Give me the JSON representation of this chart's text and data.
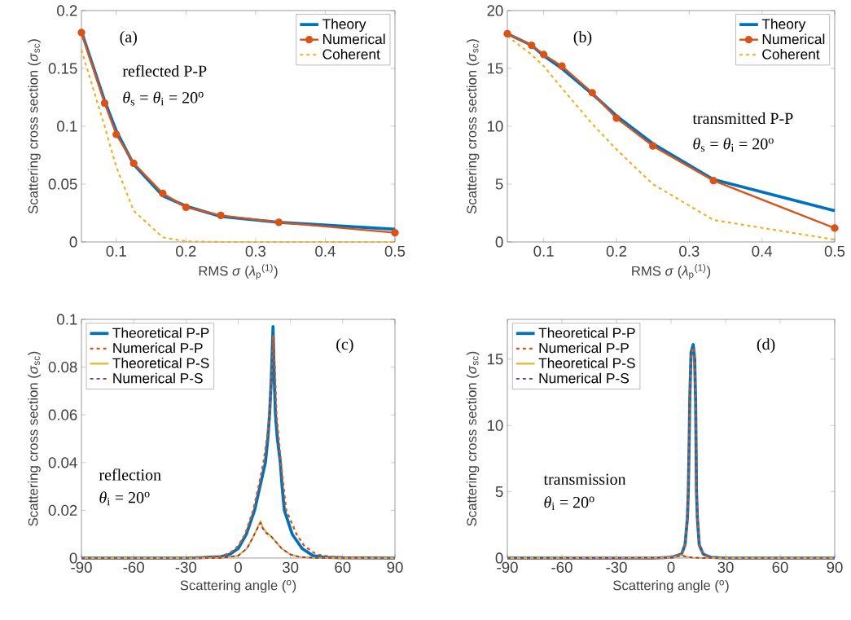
{
  "chart_data": [
    {
      "type": "line",
      "xlabel": "RMS *σ* (*λ*$_{p}$$^{(1)}$)",
      "ylabel": "Scattering cross section (*σ*$_{sc}$)",
      "x": [
        0.05,
        0.0833,
        0.1,
        0.125,
        0.1667,
        0.2,
        0.25,
        0.3333,
        0.5
      ],
      "xlim": [
        0.05,
        0.5
      ],
      "xticks": [
        0.1,
        0.2,
        0.3,
        0.4,
        0.5
      ],
      "ylim": [
        0,
        0.2
      ],
      "yticks": [
        0,
        0.05,
        0.1,
        0.15,
        0.2
      ],
      "legend": "top right",
      "annotations": [
        "(a)",
        "reflected P-P",
        "*θ*$_{s}$ = *θ*$_{i}$ = 20$^{o}$"
      ],
      "series": [
        {
          "name": "Theory",
          "color": "#0072bd",
          "values": [
            0.182,
            0.122,
            0.096,
            0.067,
            0.04,
            0.031,
            0.022,
            0.017,
            0.011
          ]
        },
        {
          "name": "Numerical",
          "color": "#d95319",
          "marker": "circle",
          "values": [
            0.181,
            0.12,
            0.093,
            0.068,
            0.042,
            0.03,
            0.023,
            0.017,
            0.008
          ]
        },
        {
          "name": "Coherent",
          "color": "#edb120",
          "line_style": "dashed",
          "values": [
            0.166,
            0.1,
            0.065,
            0.027,
            0.004,
            0.0005,
            0,
            0,
            0
          ]
        }
      ]
    },
    {
      "type": "line",
      "xlabel": "RMS *σ* (*λ*$_{p}$$^{(1)}$)",
      "ylabel": "Scattering cross section (*σ*$_{sc}$)",
      "x": [
        0.05,
        0.0833,
        0.1,
        0.125,
        0.1667,
        0.2,
        0.25,
        0.3333,
        0.5
      ],
      "xlim": [
        0.05,
        0.5
      ],
      "xticks": [
        0.1,
        0.2,
        0.3,
        0.4,
        0.5
      ],
      "ylim": [
        0,
        20
      ],
      "yticks": [
        0,
        5,
        10,
        15,
        20
      ],
      "legend": "top right",
      "annotations": [
        "(b)",
        "transmitted P-P",
        "*θ*$_{s}$ = *θ*$_{i}$ = 20$^{o}$"
      ],
      "series": [
        {
          "name": "Theory",
          "color": "#0072bd",
          "values": [
            18.0,
            17.0,
            16.1,
            15.0,
            12.8,
            10.9,
            8.5,
            5.4,
            2.7
          ]
        },
        {
          "name": "Numerical",
          "color": "#d95319",
          "marker": "circle",
          "values": [
            18.0,
            17.0,
            16.2,
            15.2,
            12.9,
            10.7,
            8.3,
            5.3,
            1.2
          ]
        },
        {
          "name": "Coherent",
          "color": "#edb120",
          "line_style": "dashed",
          "values": [
            17.8,
            16.2,
            15.2,
            13.3,
            10.2,
            8.0,
            5.0,
            1.9,
            0.2
          ]
        }
      ]
    },
    {
      "type": "line",
      "xlabel": "Scattering angle ($^{o}$)",
      "ylabel": "Scattering cross section (*σ*$_{sc}$)",
      "xlim": [
        -90,
        90
      ],
      "xticks": [
        -90,
        -60,
        -30,
        0,
        30,
        60,
        90
      ],
      "ylim": [
        0,
        0.1
      ],
      "yticks": [
        0,
        0.02,
        0.04,
        0.06,
        0.08,
        0.1
      ],
      "legend": "top left",
      "annotations": [
        "(c)",
        "reflection",
        "*θ*$_{i}$ = 20$^{o}$"
      ],
      "series": [
        {
          "name": "Theoretical P-P",
          "color": "#0072bd",
          "x": [
            -90,
            -60,
            -30,
            -20,
            -10,
            -5,
            0,
            4.7,
            9.4,
            12.5,
            15.6,
            17,
            18,
            19,
            20,
            20.7,
            21.4,
            22.5,
            24.2,
            25.2,
            26.5,
            31,
            36.7,
            43,
            50,
            60,
            90
          ],
          "values": [
            0,
            0,
            0,
            0.0002,
            0.0006,
            0.0015,
            0.004,
            0.01,
            0.02,
            0.03,
            0.04,
            0.05,
            0.06,
            0.075,
            0.097,
            0.075,
            0.06,
            0.05,
            0.04,
            0.03,
            0.02,
            0.01,
            0.004,
            0.001,
            0.0003,
            0.0001,
            0
          ]
        },
        {
          "name": "Numerical P-P",
          "color": "#d95319",
          "line_style": "dashed",
          "x": [
            -90,
            -30,
            -10,
            -5,
            0,
            4,
            8.6,
            11.7,
            14.5,
            16.5,
            18,
            19.5,
            20,
            21,
            22,
            24.5,
            26,
            27.6,
            33.5,
            38,
            45,
            55,
            90
          ],
          "values": [
            0,
            0,
            0.0008,
            0.002,
            0.005,
            0.01,
            0.02,
            0.03,
            0.04,
            0.05,
            0.06,
            0.08,
            0.093,
            0.08,
            0.06,
            0.04,
            0.03,
            0.02,
            0.01,
            0.005,
            0.0015,
            0.0004,
            0
          ]
        },
        {
          "name": "Theoretical P-S",
          "color": "#edb120",
          "x": [
            -90,
            -10,
            0,
            5,
            8,
            10,
            12.8,
            14,
            16,
            19,
            22,
            25,
            30,
            35,
            45,
            90
          ],
          "values": [
            0,
            0,
            0.001,
            0.004,
            0.008,
            0.011,
            0.0155,
            0.013,
            0.011,
            0.009,
            0.0065,
            0.004,
            0.0015,
            0.0005,
            0,
            0
          ]
        },
        {
          "name": "Numerical P-S",
          "color": "#7e2f8e",
          "line_style": "dashed",
          "x": [
            -90,
            -10,
            0,
            5,
            8,
            10,
            12.8,
            14,
            16,
            19,
            22,
            25,
            30,
            35,
            45,
            90
          ],
          "values": [
            0,
            0,
            0.001,
            0.004,
            0.008,
            0.011,
            0.0148,
            0.0125,
            0.0105,
            0.009,
            0.0065,
            0.004,
            0.0015,
            0.0005,
            0,
            0
          ]
        }
      ]
    },
    {
      "type": "line",
      "xlabel": "Scattering angle ($^{o}$)",
      "ylabel": "Scattering cross section (*σ*$_{sc}$)",
      "xlim": [
        -90,
        90
      ],
      "xticks": [
        -90,
        -60,
        -30,
        0,
        30,
        60,
        90
      ],
      "ylim": [
        0,
        18
      ],
      "yticks": [
        0,
        5,
        10,
        15
      ],
      "legend": "top left",
      "annotations": [
        "(d)",
        "transmission",
        "*θ*$_{i}$ = 20$^{o}$"
      ],
      "series": [
        {
          "name": "Theoretical P-P",
          "color": "#0072bd",
          "x": [
            -90,
            -10,
            0,
            5.8,
            7.7,
            9,
            9.5,
            10,
            10.3,
            11,
            12.2,
            13,
            13.5,
            13.8,
            14,
            14.5,
            15.5,
            17.7,
            22,
            30,
            90
          ],
          "values": [
            0,
            0,
            0.05,
            0.3,
            1,
            3,
            5,
            9,
            12,
            15.5,
            16.1,
            15,
            12,
            8,
            5,
            3,
            1,
            0.3,
            0.05,
            0,
            0
          ]
        },
        {
          "name": "Numerical P-P",
          "color": "#d95319",
          "line_style": "dashed",
          "x": [
            -90,
            -10,
            0,
            5.8,
            7.7,
            9,
            9.5,
            10,
            10.3,
            11,
            12.2,
            13,
            13.5,
            13.8,
            14,
            14.5,
            15.5,
            17.7,
            22,
            30,
            90
          ],
          "values": [
            0,
            0,
            0.05,
            0.3,
            1,
            3,
            5,
            9,
            12,
            15.3,
            15.9,
            14.8,
            12,
            8,
            5,
            3,
            1,
            0.3,
            0.05,
            0,
            0
          ]
        },
        {
          "name": "Theoretical P-S",
          "color": "#edb120",
          "x": [
            -90,
            0,
            4,
            6,
            8,
            12,
            20,
            90
          ],
          "values": [
            0,
            0.02,
            0.15,
            0.22,
            0.12,
            0.03,
            0,
            0
          ]
        },
        {
          "name": "Numerical P-S",
          "color": "#7e2f8e",
          "line_style": "dashed",
          "x": [
            -90,
            0,
            4,
            6,
            8,
            12,
            20,
            90
          ],
          "values": [
            0,
            0.02,
            0.14,
            0.2,
            0.11,
            0.03,
            0,
            0
          ]
        }
      ]
    }
  ]
}
